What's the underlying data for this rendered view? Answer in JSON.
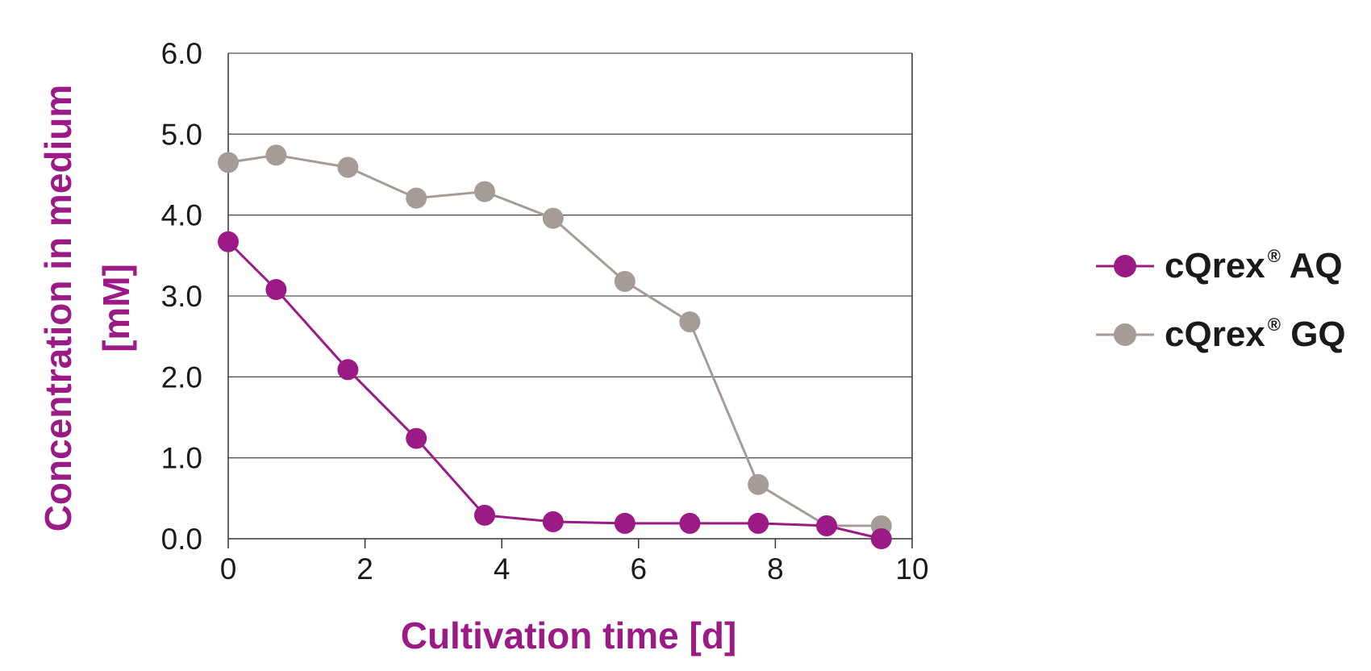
{
  "chart_data": {
    "type": "line",
    "xlabel": "Cultivation time [d]",
    "ylabel_lines": [
      "Concentration in medium",
      "[mM]"
    ],
    "xlim": [
      0,
      10
    ],
    "ylim": [
      0,
      6
    ],
    "x_ticks": [
      0,
      2,
      4,
      6,
      8,
      10
    ],
    "x_tick_labels": [
      "0",
      "2",
      "4",
      "6",
      "8",
      "10"
    ],
    "y_ticks": [
      0,
      1,
      2,
      3,
      4,
      5,
      6
    ],
    "y_tick_labels": [
      "0.0",
      "1.0",
      "2.0",
      "3.0",
      "4.0",
      "5.0",
      "6.0"
    ],
    "grid": "horizontal",
    "legend_position": "right",
    "series": [
      {
        "name": "cQrex® AQ",
        "name_base": "cQrex",
        "name_mark": "®",
        "name_suffix": " AQ",
        "color": "#9b1a86",
        "x": [
          0,
          0.7,
          1.75,
          2.75,
          3.75,
          4.75,
          5.8,
          6.75,
          7.75,
          8.75,
          9.55
        ],
        "values": [
          3.67,
          3.08,
          2.09,
          1.24,
          0.29,
          0.21,
          0.19,
          0.19,
          0.19,
          0.16,
          0.0
        ]
      },
      {
        "name": "cQrex® GQ",
        "name_base": "cQrex",
        "name_mark": "®",
        "name_suffix": " GQ",
        "color": "#a59c97",
        "x": [
          0,
          0.7,
          1.75,
          2.75,
          3.75,
          4.75,
          5.8,
          6.75,
          7.75,
          8.75,
          9.55
        ],
        "values": [
          4.65,
          4.74,
          4.59,
          4.21,
          4.29,
          3.96,
          3.18,
          2.68,
          0.67,
          0.16,
          0.16
        ]
      }
    ]
  }
}
